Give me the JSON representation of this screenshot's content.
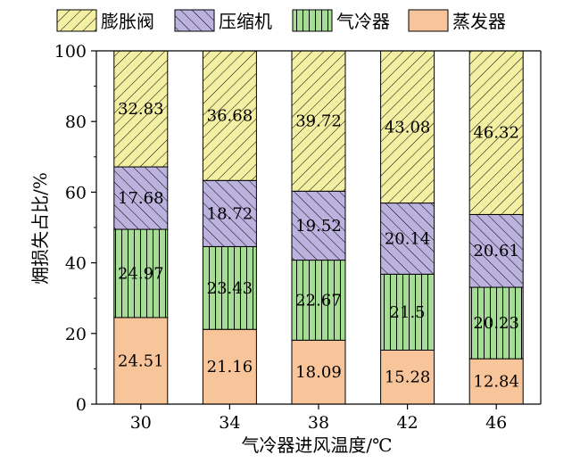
{
  "chart_data": {
    "type": "bar",
    "stacked": true,
    "categories": [
      "30",
      "34",
      "38",
      "42",
      "46"
    ],
    "series": [
      {
        "name": "蒸发器",
        "values": [
          24.51,
          21.16,
          18.09,
          15.28,
          12.84
        ],
        "color": "#f8c59a",
        "pattern": "none"
      },
      {
        "name": "气冷器",
        "values": [
          24.97,
          23.43,
          22.67,
          21.5,
          20.23
        ],
        "color": "#a6dd95",
        "pattern": "vertical-lines"
      },
      {
        "name": "压缩机",
        "values": [
          17.68,
          18.72,
          19.52,
          20.14,
          20.61
        ],
        "color": "#bcb2de",
        "pattern": "backslash-lines"
      },
      {
        "name": "膨胀阀",
        "values": [
          32.83,
          36.68,
          39.72,
          43.08,
          46.32
        ],
        "color": "#f4f0a3",
        "pattern": "slash-lines"
      }
    ],
    "labels": [
      [
        "24.51",
        "21.16",
        "18.09",
        "15.28",
        "12.84"
      ],
      [
        "24.97",
        "23.43",
        "22.67",
        "21.5",
        "20.23"
      ],
      [
        "17.68",
        "18.72",
        "19.52",
        "20.14",
        "20.61"
      ],
      [
        "32.83",
        "36.68",
        "39.72",
        "43.08",
        "46.32"
      ]
    ],
    "legend_order": [
      "膨胀阀",
      "压缩机",
      "气冷器",
      "蒸发器"
    ],
    "legend_position": "top",
    "xlabel": "气冷器进风温度/℃",
    "ylabel": "㶲损失占比/%",
    "ylim": [
      0,
      100
    ],
    "yticks": [
      "0",
      "20",
      "40",
      "60",
      "80",
      "100"
    ],
    "grid": false
  }
}
